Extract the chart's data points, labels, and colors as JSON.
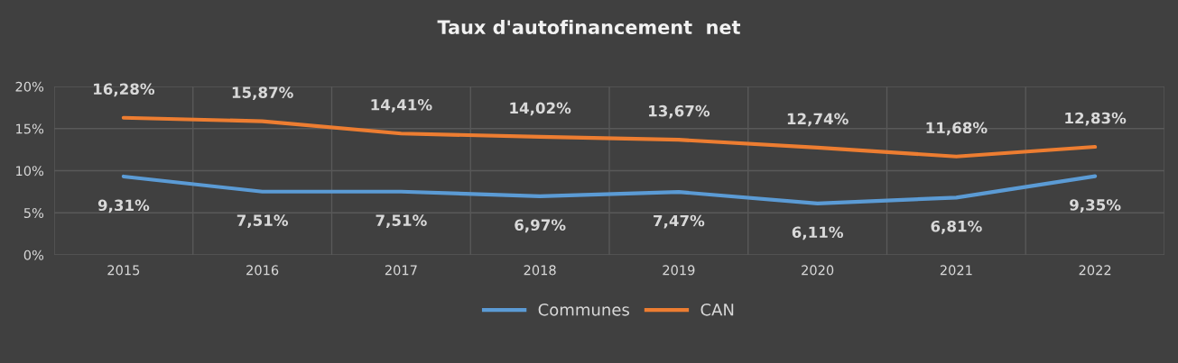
{
  "chart_data": {
    "type": "line",
    "title": "Taux d'autofinancement  net",
    "categories": [
      "2015",
      "2016",
      "2017",
      "2018",
      "2019",
      "2020",
      "2021",
      "2022"
    ],
    "series": [
      {
        "name": "Communes",
        "color": "#5b9bd5",
        "values": [
          9.31,
          7.51,
          7.51,
          6.97,
          7.47,
          6.11,
          6.81,
          9.35
        ],
        "value_labels": [
          "9,31%",
          "7,51%",
          "7,51%",
          "6,97%",
          "7,47%",
          "6,11%",
          "6,81%",
          "9,35%"
        ]
      },
      {
        "name": "CAN",
        "color": "#ed7d31",
        "values": [
          16.28,
          15.87,
          14.41,
          14.02,
          13.67,
          12.74,
          11.68,
          12.83
        ],
        "value_labels": [
          "16,28%",
          "15,87%",
          "14,41%",
          "14,02%",
          "13,67%",
          "12,74%",
          "11,68%",
          "12,83%"
        ]
      }
    ],
    "ylim": [
      0,
      20
    ],
    "yticks": [
      {
        "value": 0,
        "label": "0%"
      },
      {
        "value": 5,
        "label": "5%"
      },
      {
        "value": 10,
        "label": "10%"
      },
      {
        "value": 15,
        "label": "15%"
      },
      {
        "value": 20,
        "label": "20%"
      }
    ],
    "grid": true,
    "legend": "bottom",
    "marker": "none",
    "line_style": "solid"
  }
}
